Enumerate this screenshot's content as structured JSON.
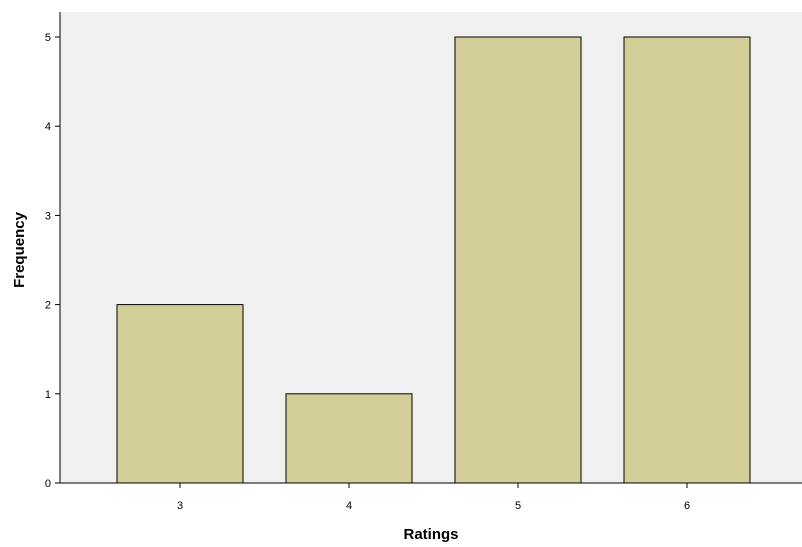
{
  "chart_data": {
    "type": "bar",
    "categories": [
      "3",
      "4",
      "5",
      "6"
    ],
    "values": [
      2,
      1,
      5,
      5
    ],
    "xlabel": "Ratings",
    "ylabel": "Frequency",
    "ylim": [
      0,
      5
    ],
    "yticks": [
      0,
      1,
      2,
      3,
      4,
      5
    ],
    "grid": false,
    "colors": {
      "bar_fill": "#d3ce97",
      "bar_stroke": "#000000",
      "plot_background": "#f0f0f0",
      "axis": "#000000"
    }
  }
}
